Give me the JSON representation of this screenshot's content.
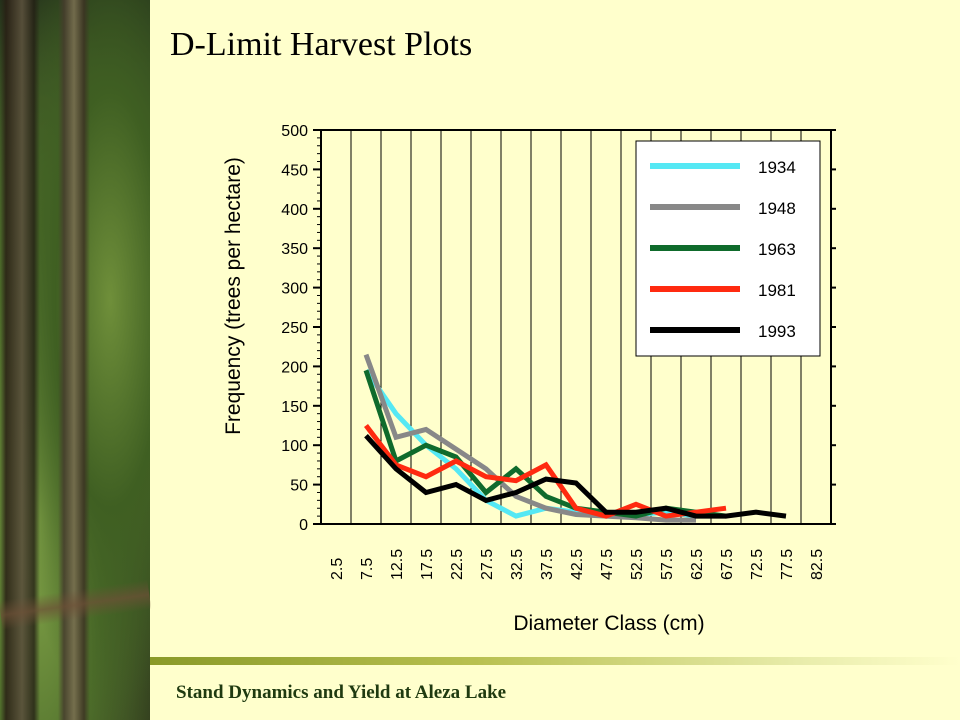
{
  "title": "D-Limit  Harvest Plots",
  "footer": "Stand Dynamics and Yield at Aleza Lake",
  "chart_data": {
    "type": "line",
    "xlabel": "Diameter Class (cm)",
    "ylabel": "Frequency (trees per hectare)",
    "ylim": [
      0,
      500
    ],
    "yticks": [
      0,
      50,
      100,
      150,
      200,
      250,
      300,
      350,
      400,
      450,
      500
    ],
    "categories": [
      "2.5",
      "7.5",
      "12.5",
      "17.5",
      "22.5",
      "27.5",
      "32.5",
      "37.5",
      "42.5",
      "47.5",
      "52.5",
      "57.5",
      "62.5",
      "67.5",
      "72.5",
      "77.5",
      "82.5"
    ],
    "grid": "vertical",
    "legend": "top-right",
    "series": [
      {
        "name": "1934",
        "color": "#55e8f4",
        "values": [
          null,
          195,
          140,
          100,
          70,
          30,
          10,
          20,
          15,
          10,
          12,
          15,
          10,
          null,
          null,
          null,
          null
        ]
      },
      {
        "name": "1948",
        "color": "#888888",
        "values": [
          null,
          215,
          110,
          120,
          95,
          70,
          35,
          20,
          12,
          10,
          8,
          5,
          5,
          null,
          null,
          null,
          null
        ]
      },
      {
        "name": "1963",
        "color": "#0f6b2c",
        "values": [
          null,
          195,
          80,
          100,
          85,
          40,
          70,
          35,
          20,
          15,
          10,
          20,
          15,
          10,
          null,
          null,
          null
        ]
      },
      {
        "name": "1981",
        "color": "#ff2a10",
        "values": [
          null,
          125,
          75,
          60,
          80,
          60,
          55,
          75,
          20,
          10,
          25,
          10,
          15,
          20,
          null,
          null,
          null
        ]
      },
      {
        "name": "1993",
        "color": "#000000",
        "values": [
          null,
          112,
          70,
          40,
          50,
          30,
          40,
          57,
          52,
          15,
          15,
          20,
          10,
          10,
          15,
          10,
          null
        ]
      }
    ]
  }
}
